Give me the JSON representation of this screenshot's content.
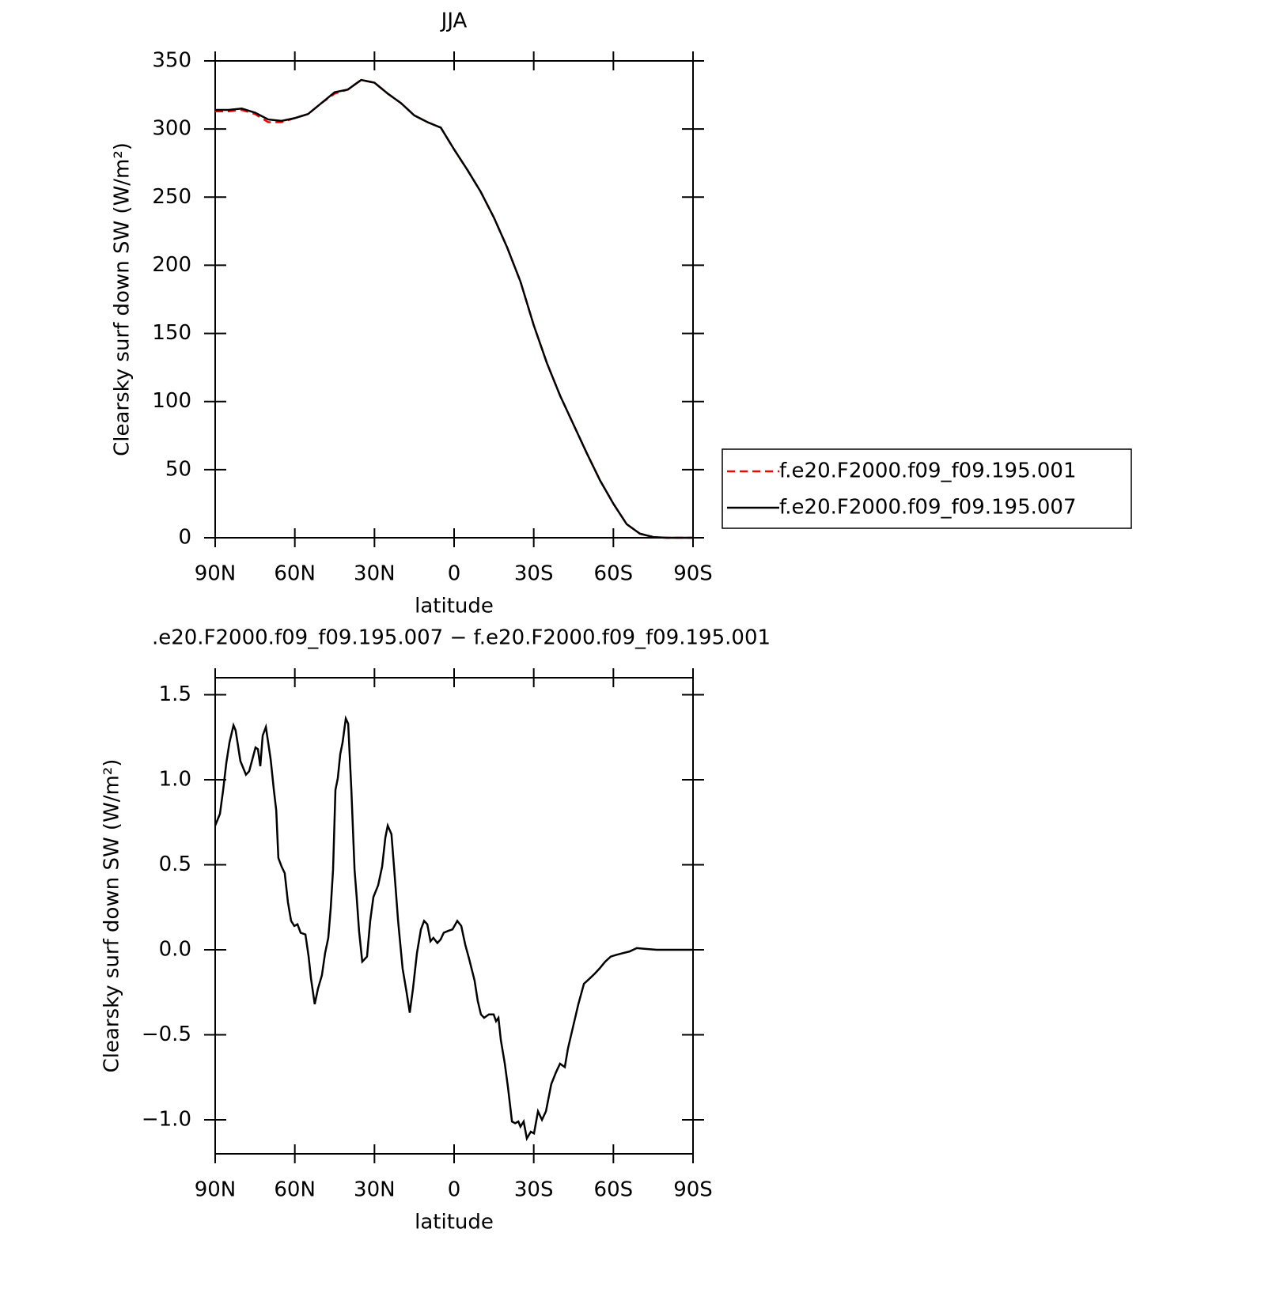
{
  "chart_data": [
    {
      "type": "line",
      "title": "JJA",
      "xlabel": "latitude",
      "ylabel": "Clearsky surf down SW (W/m²)",
      "x": [
        90,
        85,
        80,
        75,
        70,
        65,
        60,
        55,
        50,
        45,
        40,
        35,
        30,
        25,
        20,
        15,
        10,
        5,
        0,
        -5,
        -10,
        -15,
        -20,
        -25,
        -30,
        -35,
        -40,
        -45,
        -50,
        -55,
        -60,
        -65,
        -70,
        -75,
        -80,
        -85,
        -90
      ],
      "series": [
        {
          "name": "f.e20.F2000.f09_f09.195.001",
          "color": "#ff0000",
          "style": "dashed",
          "values": [
            313,
            313,
            314,
            311,
            305,
            305,
            308,
            311,
            319,
            326,
            329,
            336,
            334,
            326,
            319,
            310,
            305,
            301,
            285,
            270,
            254,
            235,
            213,
            188,
            156,
            128,
            104,
            83,
            62,
            42,
            25,
            10,
            3,
            0.5,
            0,
            0,
            0
          ]
        },
        {
          "name": "f.e20.F2000.f09_f09.195.007",
          "color": "#000000",
          "style": "solid",
          "values": [
            314,
            314,
            315,
            312,
            307,
            306,
            308,
            311,
            319,
            327,
            329,
            336,
            334,
            326,
            319,
            310,
            305,
            301,
            285,
            270,
            254,
            235,
            213,
            188,
            156,
            128,
            104,
            83,
            62,
            42,
            25,
            10,
            3,
            0.5,
            0,
            0,
            0
          ]
        }
      ],
      "xlim": [
        90,
        -90
      ],
      "xticks": [
        {
          "value": 90,
          "label": "90N"
        },
        {
          "value": 60,
          "label": "60N"
        },
        {
          "value": 30,
          "label": "30N"
        },
        0,
        {
          "value": -30,
          "label": "30S"
        },
        {
          "value": -60,
          "label": "60S"
        },
        {
          "value": -90,
          "label": "90S"
        }
      ],
      "ylim": [
        0,
        350
      ],
      "yticks": [
        0,
        50,
        100,
        150,
        200,
        250,
        300,
        350
      ],
      "legend": "right"
    },
    {
      "type": "line",
      "title": ".e20.F2000.f09_f09.195.007 − f.e20.F2000.f09_f09.195.001",
      "xlabel": "latitude",
      "ylabel": "Clearsky surf down SW (W/m²)",
      "x": [
        90,
        88.2,
        87,
        85.8,
        84.6,
        83.1,
        82.3,
        80.5,
        78.4,
        77.2,
        74.8,
        73.9,
        73,
        72.1,
        70.9,
        69.1,
        67.9,
        67,
        66.2,
        65,
        63.8,
        62.6,
        61.4,
        60.2,
        59,
        57.8,
        56,
        54.8,
        53.9,
        52.5,
        51.3,
        49.8,
        48.6,
        47.4,
        46.5,
        45.6,
        44.7,
        43.8,
        42.9,
        42,
        40.8,
        39.9,
        38.7,
        37.5,
        36.7,
        35.8,
        34.6,
        32.8,
        31.6,
        30.4,
        28.6,
        27.1,
        25.9,
        25,
        23.6,
        22.3,
        21.1,
        19.4,
        17.9,
        16.7,
        15.5,
        14,
        12.5,
        11.3,
        10.1,
        8.9,
        7.8,
        6.3,
        5.1,
        3.9,
        2.4,
        0.6,
        -1.2,
        -2.7,
        -4.2,
        -5.6,
        -7.7,
        -8.9,
        -10.1,
        -11.3,
        -13.1,
        -14.9,
        -15.8,
        -16.7,
        -17.6,
        -19.1,
        -20.3,
        -21.8,
        -23,
        -24.2,
        -25,
        -26.2,
        -27.4,
        -28.9,
        -30.1,
        -31.6,
        -33.1,
        -34.6,
        -36.6,
        -38.4,
        -39.9,
        -41.7,
        -42.9,
        -44.7,
        -46.8,
        -48.9,
        -51,
        -53,
        -54.8,
        -56.9,
        -59,
        -61.1,
        -63.5,
        -66.1,
        -68.8,
        -72.1,
        -76.3,
        -90
      ],
      "values": [
        0.73,
        0.8,
        0.94,
        1.1,
        1.22,
        1.32,
        1.29,
        1.11,
        1.03,
        1.05,
        1.19,
        1.18,
        1.08,
        1.26,
        1.31,
        1.12,
        0.94,
        0.82,
        0.54,
        0.49,
        0.45,
        0.28,
        0.17,
        0.14,
        0.15,
        0.1,
        0.09,
        -0.04,
        -0.17,
        -0.32,
        -0.23,
        -0.15,
        -0.02,
        0.07,
        0.24,
        0.47,
        0.94,
        1.01,
        1.15,
        1.22,
        1.36,
        1.33,
        0.94,
        0.47,
        0.31,
        0.11,
        -0.07,
        -0.04,
        0.17,
        0.31,
        0.38,
        0.49,
        0.66,
        0.73,
        0.68,
        0.42,
        0.17,
        -0.11,
        -0.25,
        -0.37,
        -0.23,
        -0.02,
        0.12,
        0.17,
        0.15,
        0.05,
        0.07,
        0.04,
        0.06,
        0.1,
        0.11,
        0.12,
        0.17,
        0.14,
        0.03,
        -0.05,
        -0.18,
        -0.3,
        -0.38,
        -0.4,
        -0.38,
        -0.38,
        -0.42,
        -0.4,
        -0.53,
        -0.67,
        -0.81,
        -1.01,
        -1.02,
        -1.01,
        -1.04,
        -1.01,
        -1.11,
        -1.07,
        -1.08,
        -0.95,
        -1,
        -0.95,
        -0.79,
        -0.72,
        -0.67,
        -0.69,
        -0.58,
        -0.46,
        -0.32,
        -0.2,
        -0.17,
        -0.14,
        -0.11,
        -0.07,
        -0.04,
        -0.03,
        -0.02,
        -0.01,
        0.01,
        0.005,
        0,
        0
      ],
      "color": "#000000",
      "xlim": [
        90,
        -90
      ],
      "xticks": [
        {
          "value": 90,
          "label": "90N"
        },
        {
          "value": 60,
          "label": "60N"
        },
        {
          "value": 30,
          "label": "30N"
        },
        0,
        {
          "value": -30,
          "label": "30S"
        },
        {
          "value": -60,
          "label": "60S"
        },
        {
          "value": -90,
          "label": "90S"
        }
      ],
      "ylim": [
        -1.2,
        1.6
      ],
      "yticks": [
        {
          "value": -1,
          "label": "−1.0"
        },
        {
          "value": -0.5,
          "label": "−0.5"
        },
        {
          "value": 0,
          "label": "0.0"
        },
        0.5,
        {
          "value": 1,
          "label": "1.0"
        },
        1.5
      ]
    }
  ]
}
